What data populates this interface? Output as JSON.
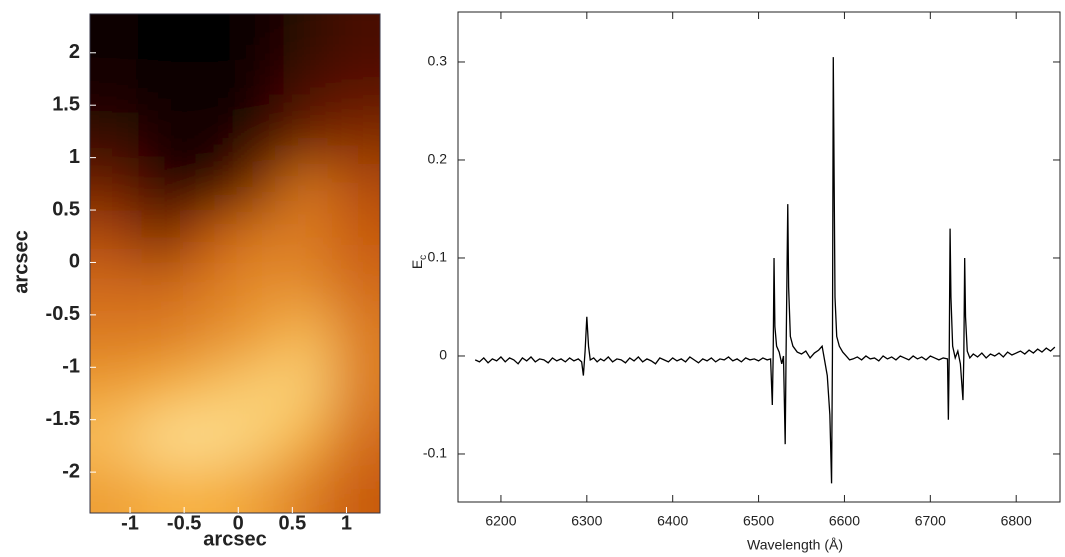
{
  "chart_data": [
    {
      "type": "heatmap",
      "xlabel": "arcsec",
      "ylabel": "arcsec",
      "xlim": [
        -1.37,
        1.31
      ],
      "ylim": [
        -2.39,
        2.37
      ],
      "xticks": [
        -1,
        -0.5,
        0,
        0.5,
        1
      ],
      "yticks": [
        -2,
        -1.5,
        -1,
        -0.5,
        0,
        0.5,
        1,
        1.5,
        2
      ],
      "x": [
        -1.15,
        -0.7,
        -0.25,
        0.2,
        0.64,
        1.09
      ],
      "y": [
        2.13,
        1.66,
        1.18,
        0.7,
        0.23,
        -0.25,
        -0.72,
        -1.2,
        -1.68,
        -2.15
      ],
      "z": [
        [
          0.02,
          0.0,
          0.0,
          0.02,
          0.12,
          0.2
        ],
        [
          0.05,
          0.02,
          0.0,
          0.05,
          0.2,
          0.25
        ],
        [
          0.15,
          0.05,
          0.02,
          0.12,
          0.3,
          0.35
        ],
        [
          0.3,
          0.08,
          0.05,
          0.35,
          0.6,
          0.45
        ],
        [
          0.45,
          0.3,
          0.5,
          0.6,
          0.6,
          0.5
        ],
        [
          0.55,
          0.55,
          0.6,
          0.65,
          0.65,
          0.55
        ],
        [
          0.6,
          0.6,
          0.65,
          0.7,
          0.8,
          0.6
        ],
        [
          0.7,
          0.75,
          0.8,
          0.85,
          0.85,
          0.6
        ],
        [
          0.8,
          0.9,
          0.9,
          0.85,
          0.75,
          0.55
        ],
        [
          0.7,
          0.75,
          0.75,
          0.7,
          0.6,
          0.5
        ]
      ],
      "colormap": [
        "#000000",
        "#5a0f00",
        "#c85a10",
        "#f7b040",
        "#ffffc8"
      ]
    },
    {
      "type": "line",
      "xlabel": "Wavelength (Å)",
      "ylabel": "E",
      "ylabel_sub": "c",
      "xlim": [
        6150,
        6851
      ],
      "ylim": [
        -0.149,
        0.351
      ],
      "xticks": [
        6200,
        6300,
        6400,
        6500,
        6600,
        6700,
        6800
      ],
      "yticks": [
        -0.1,
        0,
        0.1,
        0.2,
        0.3
      ],
      "color": "#000000",
      "x": [
        6170,
        6175,
        6180,
        6185,
        6190,
        6195,
        6200,
        6205,
        6210,
        6215,
        6220,
        6225,
        6230,
        6235,
        6240,
        6245,
        6250,
        6255,
        6260,
        6265,
        6270,
        6275,
        6280,
        6285,
        6290,
        6294,
        6296,
        6298,
        6300,
        6302,
        6304,
        6308,
        6312,
        6316,
        6320,
        6325,
        6330,
        6335,
        6340,
        6345,
        6350,
        6355,
        6360,
        6365,
        6370,
        6375,
        6380,
        6385,
        6390,
        6395,
        6400,
        6405,
        6410,
        6415,
        6420,
        6425,
        6430,
        6435,
        6440,
        6445,
        6450,
        6455,
        6460,
        6465,
        6470,
        6475,
        6480,
        6485,
        6490,
        6495,
        6500,
        6505,
        6510,
        6514,
        6516,
        6517,
        6518,
        6519,
        6521,
        6524,
        6527,
        6529,
        6531,
        6532,
        6534,
        6535,
        6537,
        6540,
        6545,
        6550,
        6555,
        6560,
        6565,
        6570,
        6574,
        6577,
        6580,
        6583,
        6585,
        6586,
        6587,
        6588,
        6589,
        6591,
        6594,
        6598,
        6602,
        6606,
        6610,
        6615,
        6620,
        6625,
        6630,
        6635,
        6640,
        6645,
        6650,
        6655,
        6660,
        6665,
        6670,
        6675,
        6680,
        6685,
        6690,
        6695,
        6700,
        6705,
        6710,
        6715,
        6720,
        6721,
        6722,
        6723,
        6724,
        6726,
        6729,
        6732,
        6735,
        6738,
        6739,
        6740,
        6741,
        6743,
        6746,
        6750,
        6755,
        6760,
        6765,
        6770,
        6775,
        6780,
        6785,
        6790,
        6795,
        6800,
        6805,
        6810,
        6815,
        6820,
        6825,
        6830,
        6835,
        6840,
        6845
      ],
      "values": [
        -0.004,
        -0.006,
        -0.002,
        -0.007,
        -0.003,
        -0.005,
        -0.001,
        -0.006,
        -0.002,
        -0.004,
        -0.008,
        -0.002,
        -0.005,
        -0.001,
        -0.006,
        -0.003,
        -0.004,
        -0.007,
        -0.002,
        -0.005,
        -0.003,
        -0.006,
        -0.002,
        -0.005,
        -0.003,
        -0.006,
        -0.02,
        0.005,
        0.04,
        0.01,
        -0.004,
        -0.002,
        -0.006,
        -0.003,
        -0.005,
        -0.001,
        -0.006,
        -0.003,
        -0.004,
        -0.007,
        -0.002,
        -0.005,
        -0.001,
        -0.006,
        -0.003,
        -0.005,
        -0.008,
        -0.002,
        -0.004,
        -0.006,
        -0.002,
        -0.005,
        -0.003,
        -0.006,
        -0.001,
        -0.004,
        -0.007,
        -0.003,
        -0.005,
        -0.002,
        -0.006,
        -0.003,
        -0.004,
        -0.001,
        -0.005,
        -0.003,
        -0.006,
        -0.002,
        -0.004,
        -0.003,
        -0.005,
        -0.002,
        -0.004,
        -0.003,
        -0.05,
        0.0,
        0.1,
        0.03,
        0.01,
        0.004,
        -0.008,
        0.0,
        -0.09,
        0.0,
        0.155,
        0.07,
        0.02,
        0.01,
        0.004,
        0.002,
        0.005,
        -0.002,
        0.003,
        0.006,
        0.01,
        -0.005,
        -0.02,
        -0.06,
        -0.13,
        0.0,
        0.305,
        0.18,
        0.06,
        0.02,
        0.01,
        0.004,
        0.0,
        -0.004,
        -0.003,
        -0.001,
        -0.004,
        0.0,
        -0.003,
        -0.002,
        -0.005,
        0.0,
        -0.003,
        -0.001,
        -0.004,
        0.0,
        -0.002,
        -0.004,
        0.0,
        -0.003,
        -0.001,
        -0.004,
        0.0,
        -0.002,
        -0.004,
        -0.002,
        -0.003,
        -0.065,
        0.0,
        0.13,
        0.06,
        0.01,
        -0.002,
        0.005,
        -0.008,
        -0.045,
        0.0,
        0.1,
        0.04,
        0.005,
        -0.002,
        0.002,
        -0.001,
        0.003,
        -0.002,
        0.002,
        0.0,
        0.003,
        -0.001,
        0.004,
        0.001,
        0.003,
        0.005,
        0.002,
        0.006,
        0.003,
        0.007,
        0.004,
        0.008,
        0.005,
        0.009
      ]
    }
  ]
}
